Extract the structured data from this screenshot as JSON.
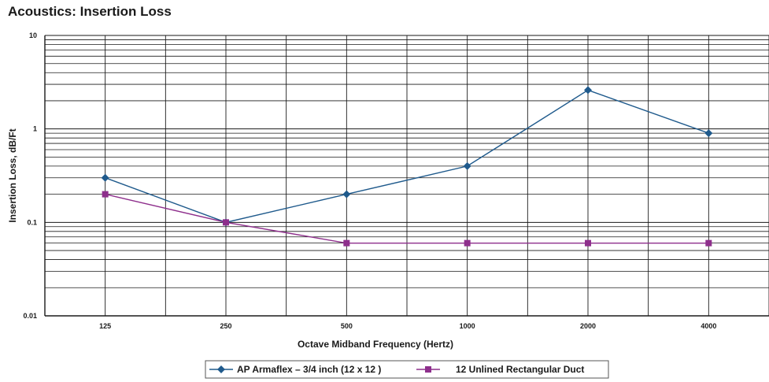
{
  "chart_data": {
    "type": "line",
    "title": "Acoustics: Insertion Loss",
    "xlabel": "Octave Midband Frequency (Hertz)",
    "ylabel": "Insertion Loss, dB/Ft",
    "categories": [
      "125",
      "250",
      "500",
      "1000",
      "2000",
      "4000"
    ],
    "y_scale": "log",
    "ylim": [
      0.01,
      10
    ],
    "y_tick_labels": [
      "0.01",
      "0.1",
      "1",
      "10"
    ],
    "grid": true,
    "legend_position": "bottom-center",
    "series": [
      {
        "name": "AP Armaflex – 3/4 inch (12  x 12 )",
        "values": [
          0.3,
          0.1,
          0.2,
          0.4,
          2.6,
          0.9
        ],
        "color": "#1f5a8c",
        "marker": "diamond"
      },
      {
        "name": "12 Unlined Rectangular Duct",
        "values": [
          0.2,
          0.1,
          0.06,
          0.06,
          0.06,
          0.06
        ],
        "color": "#8e2f8c",
        "marker": "square"
      }
    ]
  }
}
